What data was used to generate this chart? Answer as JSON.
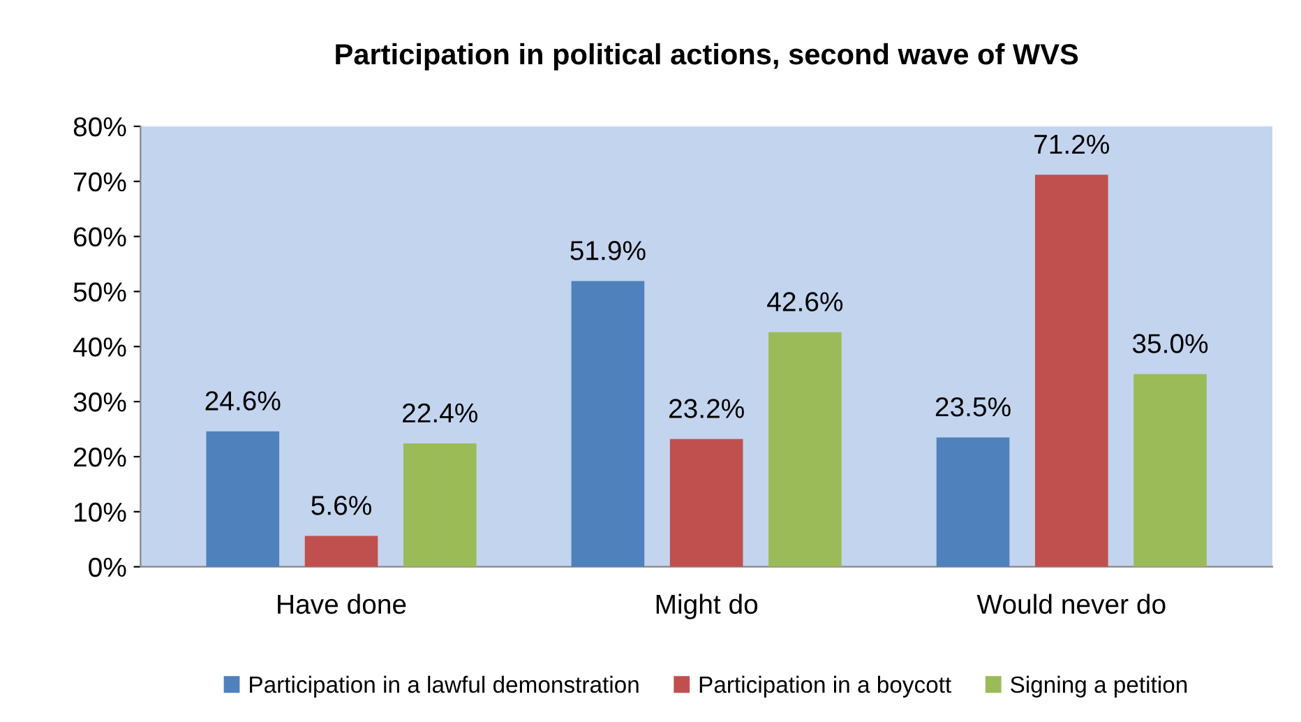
{
  "chart_data": {
    "type": "bar",
    "title": "Participation in political actions, second wave of WVS",
    "categories": [
      "Have done",
      "Might do",
      "Would never do"
    ],
    "series": [
      {
        "name": "Participation in a lawful demonstration",
        "color": "#4f81bd",
        "values": [
          24.6,
          51.9,
          23.5
        ],
        "value_labels": [
          "24.6%",
          "51.9%",
          "23.5%"
        ]
      },
      {
        "name": "Participation in a boycott",
        "color": "#c0504d",
        "values": [
          5.6,
          23.2,
          71.2
        ],
        "value_labels": [
          "5.6%",
          "23.2%",
          "71.2%"
        ]
      },
      {
        "name": "Signing a petition",
        "color": "#9bbb59",
        "values": [
          22.4,
          42.6,
          35.0
        ],
        "value_labels": [
          "22.4%",
          "42.6%",
          "35.0%"
        ]
      }
    ],
    "ylim": [
      0,
      80
    ],
    "yticks": [
      {
        "value": 0,
        "label": "0%"
      },
      {
        "value": 10,
        "label": "10%"
      },
      {
        "value": 20,
        "label": "20%"
      },
      {
        "value": 30,
        "label": "30%"
      },
      {
        "value": 40,
        "label": "40%"
      },
      {
        "value": 50,
        "label": "50%"
      },
      {
        "value": 60,
        "label": "60%"
      },
      {
        "value": 70,
        "label": "70%"
      },
      {
        "value": 80,
        "label": "80%"
      }
    ],
    "legend": "bottom",
    "grid": false
  }
}
